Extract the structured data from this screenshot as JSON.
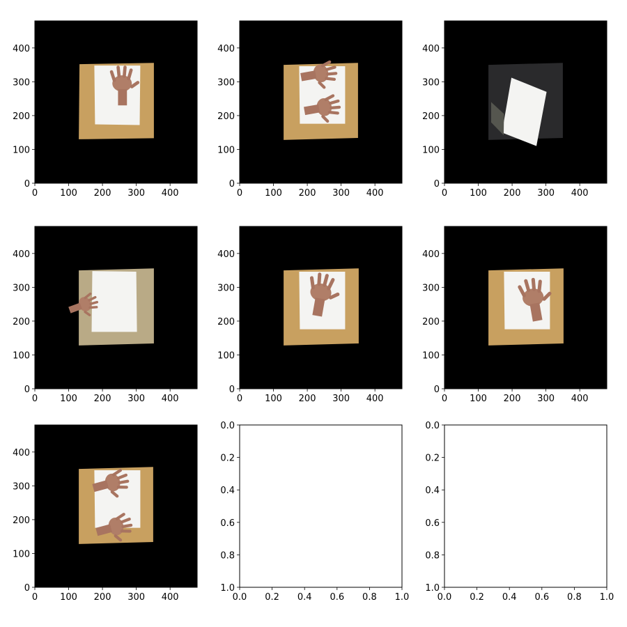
{
  "figure": {
    "rows": 3,
    "cols": 3
  },
  "chart_data": [
    {
      "type": "image",
      "title": "",
      "xlabel": "",
      "ylabel": "",
      "xlim": [
        0,
        480
      ],
      "ylim": [
        480,
        0
      ],
      "xticks": [
        "0",
        "100",
        "200",
        "300",
        "400"
      ],
      "yticks": [
        "0",
        "100",
        "200",
        "300",
        "400"
      ],
      "content": {
        "background": "#000000",
        "photo": "hand on white paper on cardboard",
        "warp": [
          [
            130,
            130
          ],
          [
            352,
            133
          ],
          [
            352,
            356
          ],
          [
            132,
            352
          ]
        ],
        "paper_color": "#f4f4f2",
        "surface_color": "#c8a060",
        "hands": 1
      }
    },
    {
      "type": "image",
      "title": "",
      "xlabel": "",
      "ylabel": "",
      "xlim": [
        0,
        480
      ],
      "ylim": [
        480,
        0
      ],
      "xticks": [
        "0",
        "100",
        "200",
        "300",
        "400"
      ],
      "yticks": [
        "0",
        "100",
        "200",
        "300",
        "400"
      ],
      "content": {
        "background": "#000000",
        "photo": "two hands on white paper on cardboard",
        "warp": [
          [
            130,
            128
          ],
          [
            350,
            134
          ],
          [
            350,
            356
          ],
          [
            130,
            350
          ]
        ],
        "paper_color": "#f4f4f2",
        "surface_color": "#c8a060",
        "hands": 2
      }
    },
    {
      "type": "image",
      "title": "",
      "xlabel": "",
      "ylabel": "",
      "xlim": [
        0,
        480
      ],
      "ylim": [
        480,
        0
      ],
      "xticks": [
        "0",
        "100",
        "200",
        "300",
        "400"
      ],
      "yticks": [
        "0",
        "100",
        "200",
        "300",
        "400"
      ],
      "content": {
        "background": "#000000",
        "photo": "white paper on dark backpack",
        "warp": [
          [
            130,
            128
          ],
          [
            350,
            134
          ],
          [
            350,
            356
          ],
          [
            130,
            350
          ]
        ],
        "paper_color": "#f4f4f2",
        "surface_color": "#2a2a2c",
        "hands": 0
      }
    },
    {
      "type": "image",
      "title": "",
      "xlabel": "",
      "ylabel": "",
      "xlim": [
        0,
        480
      ],
      "ylim": [
        480,
        0
      ],
      "xticks": [
        "0",
        "100",
        "200",
        "300",
        "400"
      ],
      "yticks": [
        "0",
        "100",
        "200",
        "300",
        "400"
      ],
      "content": {
        "background": "#000000",
        "photo": "hand holding white paper on beige fabric",
        "warp": [
          [
            130,
            128
          ],
          [
            352,
            134
          ],
          [
            352,
            356
          ],
          [
            130,
            350
          ]
        ],
        "paper_color": "#f4f4f2",
        "surface_color": "#b9aa86",
        "hands": 1
      }
    },
    {
      "type": "image",
      "title": "",
      "xlabel": "",
      "ylabel": "",
      "xlim": [
        0,
        480
      ],
      "ylim": [
        480,
        0
      ],
      "xticks": [
        "0",
        "100",
        "200",
        "300",
        "400"
      ],
      "yticks": [
        "0",
        "100",
        "200",
        "300",
        "400"
      ],
      "content": {
        "background": "#000000",
        "photo": "hand on white paper on cardboard",
        "warp": [
          [
            130,
            128
          ],
          [
            352,
            134
          ],
          [
            352,
            356
          ],
          [
            130,
            350
          ]
        ],
        "paper_color": "#f4f4f2",
        "surface_color": "#c8a060",
        "hands": 1
      }
    },
    {
      "type": "image",
      "title": "",
      "xlabel": "",
      "ylabel": "",
      "xlim": [
        0,
        480
      ],
      "ylim": [
        480,
        0
      ],
      "xticks": [
        "0",
        "100",
        "200",
        "300",
        "400"
      ],
      "yticks": [
        "0",
        "100",
        "200",
        "300",
        "400"
      ],
      "content": {
        "background": "#000000",
        "photo": "hand on white paper on cardboard",
        "warp": [
          [
            130,
            128
          ],
          [
            352,
            134
          ],
          [
            352,
            356
          ],
          [
            130,
            350
          ]
        ],
        "paper_color": "#f4f4f2",
        "surface_color": "#c8a060",
        "hands": 1
      }
    },
    {
      "type": "image",
      "title": "",
      "xlabel": "",
      "ylabel": "",
      "xlim": [
        0,
        480
      ],
      "ylim": [
        480,
        0
      ],
      "xticks": [
        "0",
        "100",
        "200",
        "300",
        "400"
      ],
      "yticks": [
        "0",
        "100",
        "200",
        "300",
        "400"
      ],
      "content": {
        "background": "#000000",
        "photo": "two hands on white paper on cardboard",
        "warp": [
          [
            130,
            128
          ],
          [
            350,
            134
          ],
          [
            350,
            356
          ],
          [
            130,
            350
          ]
        ],
        "paper_color": "#f4f4f2",
        "surface_color": "#c8a060",
        "hands": 2
      }
    },
    {
      "type": "empty",
      "title": "",
      "xlabel": "",
      "ylabel": "",
      "xlim": [
        0,
        1
      ],
      "ylim": [
        0,
        1
      ],
      "xticks": [
        "0.0",
        "0.2",
        "0.4",
        "0.6",
        "0.8",
        "1.0"
      ],
      "yticks": [
        "0.0",
        "0.2",
        "0.4",
        "0.6",
        "0.8",
        "1.0"
      ]
    },
    {
      "type": "empty",
      "title": "",
      "xlabel": "",
      "ylabel": "",
      "xlim": [
        0,
        1
      ],
      "ylim": [
        0,
        1
      ],
      "xticks": [
        "0.0",
        "0.2",
        "0.4",
        "0.6",
        "0.8",
        "1.0"
      ],
      "yticks": [
        "0.0",
        "0.2",
        "0.4",
        "0.6",
        "0.8",
        "1.0"
      ]
    }
  ]
}
